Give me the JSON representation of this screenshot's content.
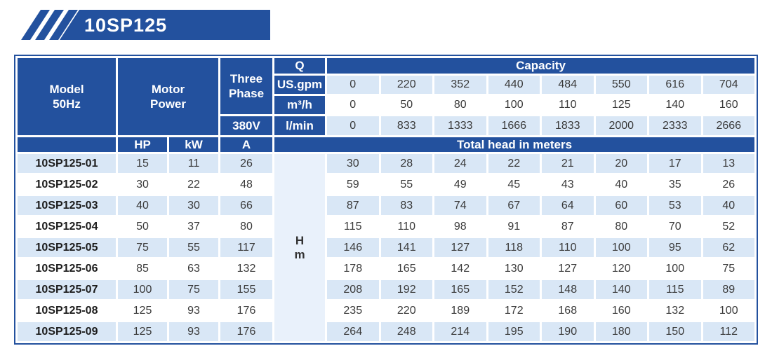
{
  "banner": {
    "title": "10SP125"
  },
  "colors": {
    "header_blue": "#23519E",
    "light_row_blue": "#D9E7F6",
    "h_column_blue": "#E9F1FB",
    "text_dark": "#3A3A3A"
  },
  "table": {
    "header": {
      "model_line1": "Model",
      "model_line2": "50Hz",
      "motor_line1": "Motor",
      "motor_line2": "Power",
      "three_line1": "Three",
      "three_line2": "Phase",
      "q_label": "Q",
      "voltage_label": "380V",
      "capacity_label": "Capacity",
      "total_head_label": "Total head in meters",
      "hp_label": "HP",
      "kw_label": "kW",
      "a_label": "A",
      "unit_rows": [
        {
          "unit": "US.gpm",
          "values": [
            "0",
            "220",
            "352",
            "440",
            "484",
            "550",
            "616",
            "704"
          ]
        },
        {
          "unit": "m³/h",
          "values": [
            "0",
            "50",
            "80",
            "100",
            "110",
            "125",
            "140",
            "160"
          ]
        },
        {
          "unit": "l/min",
          "values": [
            "0",
            "833",
            "1333",
            "1666",
            "1833",
            "2000",
            "2333",
            "2666"
          ]
        }
      ],
      "head_unit_line1": "H",
      "head_unit_line2": "m"
    },
    "rows": [
      {
        "model": "10SP125-01",
        "hp": "15",
        "kw": "11",
        "a": "26",
        "heads": [
          "30",
          "28",
          "24",
          "22",
          "21",
          "20",
          "17",
          "13"
        ]
      },
      {
        "model": "10SP125-02",
        "hp": "30",
        "kw": "22",
        "a": "48",
        "heads": [
          "59",
          "55",
          "49",
          "45",
          "43",
          "40",
          "35",
          "26"
        ]
      },
      {
        "model": "10SP125-03",
        "hp": "40",
        "kw": "30",
        "a": "66",
        "heads": [
          "87",
          "83",
          "74",
          "67",
          "64",
          "60",
          "53",
          "40"
        ]
      },
      {
        "model": "10SP125-04",
        "hp": "50",
        "kw": "37",
        "a": "80",
        "heads": [
          "115",
          "110",
          "98",
          "91",
          "87",
          "80",
          "70",
          "52"
        ]
      },
      {
        "model": "10SP125-05",
        "hp": "75",
        "kw": "55",
        "a": "117",
        "heads": [
          "146",
          "141",
          "127",
          "118",
          "110",
          "100",
          "95",
          "62"
        ]
      },
      {
        "model": "10SP125-06",
        "hp": "85",
        "kw": "63",
        "a": "132",
        "heads": [
          "178",
          "165",
          "142",
          "130",
          "127",
          "120",
          "100",
          "75"
        ]
      },
      {
        "model": "10SP125-07",
        "hp": "100",
        "kw": "75",
        "a": "155",
        "heads": [
          "208",
          "192",
          "165",
          "152",
          "148",
          "140",
          "115",
          "89"
        ]
      },
      {
        "model": "10SP125-08",
        "hp": "125",
        "kw": "93",
        "a": "176",
        "heads": [
          "235",
          "220",
          "189",
          "172",
          "168",
          "160",
          "132",
          "100"
        ]
      },
      {
        "model": "10SP125-09",
        "hp": "125",
        "kw": "93",
        "a": "176",
        "heads": [
          "264",
          "248",
          "214",
          "195",
          "190",
          "180",
          "150",
          "112"
        ]
      }
    ]
  }
}
